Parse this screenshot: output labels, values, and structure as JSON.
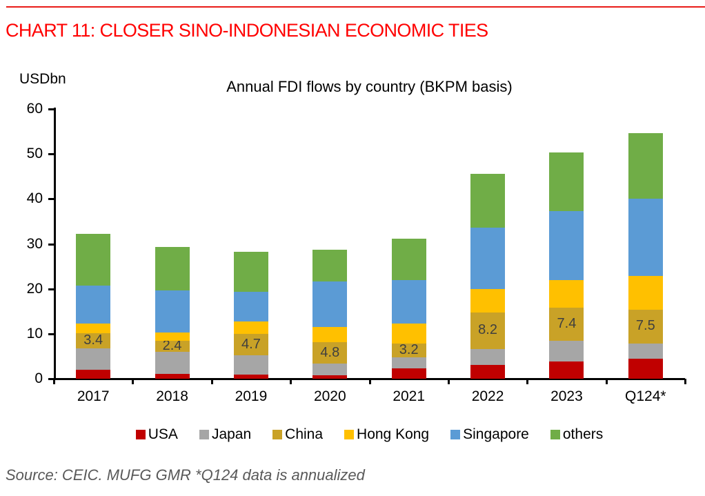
{
  "page": {
    "heading": "CHART 11: CLOSER SINO-INDONESIAN ECONOMIC TIES",
    "source_note": "Source: CEIC. MUFG GMR *Q124 data is annualized"
  },
  "colors": {
    "heading_red": "#ff0000",
    "top_rule_red": "#e81b17",
    "axis_black": "#000000",
    "data_label_gray": "#3f3f3f",
    "source_gray": "#595959"
  },
  "chart_data": {
    "type": "bar",
    "stacked": true,
    "title": "Annual FDI flows by country (BKPM basis)",
    "ylabel": "USDbn",
    "ylim": [
      0,
      60
    ],
    "yticks": [
      0,
      10,
      20,
      30,
      40,
      50,
      60
    ],
    "grid": false,
    "legend_position": "bottom",
    "categories": [
      "2017",
      "2018",
      "2019",
      "2020",
      "2021",
      "2022",
      "2023",
      "Q124*"
    ],
    "series": [
      {
        "name": "USA",
        "color": "#c00000",
        "values": [
          2.0,
          1.1,
          0.9,
          0.7,
          2.3,
          3.0,
          3.9,
          4.5
        ]
      },
      {
        "name": "Japan",
        "color": "#a6a6a6",
        "values": [
          4.7,
          4.9,
          4.3,
          2.6,
          2.4,
          3.6,
          4.5,
          3.4
        ]
      },
      {
        "name": "China",
        "color": "#c9a227",
        "values": [
          3.4,
          2.4,
          4.7,
          4.8,
          3.2,
          8.2,
          7.4,
          7.5
        ]
      },
      {
        "name": "Hong Kong",
        "color": "#ffc000",
        "values": [
          2.1,
          1.9,
          2.9,
          3.4,
          4.4,
          5.2,
          6.1,
          7.5
        ]
      },
      {
        "name": "Singapore",
        "color": "#5b9bd5",
        "values": [
          8.5,
          9.3,
          6.5,
          10.1,
          9.6,
          13.6,
          15.4,
          17.1
        ]
      },
      {
        "name": "others",
        "color": "#70ad47",
        "values": [
          11.6,
          9.7,
          8.9,
          7.1,
          9.2,
          11.9,
          13.0,
          14.6
        ]
      }
    ],
    "totals": [
      32.3,
      29.3,
      28.2,
      28.7,
      31.1,
      45.5,
      50.3,
      54.6
    ],
    "labeled_series": "China"
  }
}
